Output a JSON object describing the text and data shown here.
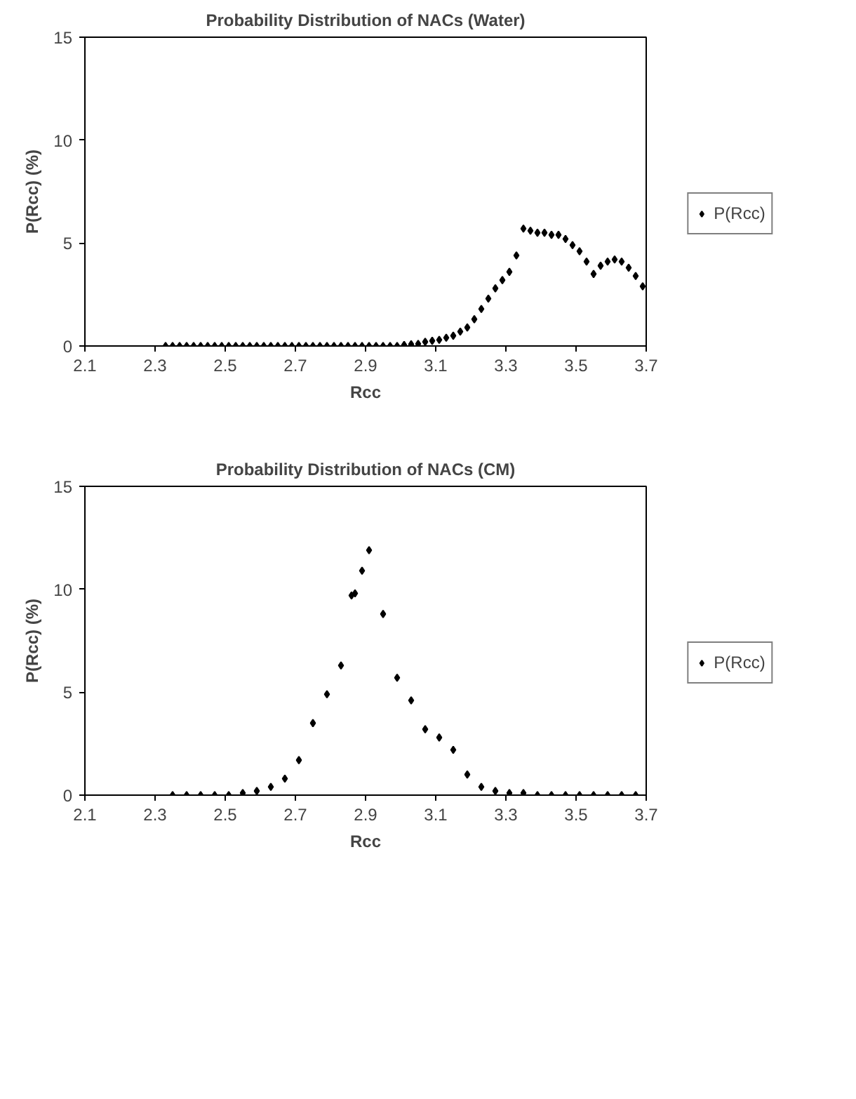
{
  "chart_data": [
    {
      "type": "scatter",
      "title": "Probability Distribution of NACs (Water)",
      "xlabel": "Rcc",
      "ylabel": "P(Rcc) (%)",
      "xlim": [
        2.1,
        3.7
      ],
      "xticks": [
        2.1,
        2.3,
        2.5,
        2.7,
        2.9,
        3.1,
        3.3,
        3.5,
        3.7
      ],
      "ylim": [
        0,
        15
      ],
      "yticks": [
        0,
        5,
        10,
        15
      ],
      "grid": false,
      "legend": "right",
      "marker": "diamond",
      "series": [
        {
          "name": "P(Rcc)",
          "color": "#000000",
          "x": [
            2.33,
            2.35,
            2.37,
            2.39,
            2.41,
            2.43,
            2.45,
            2.47,
            2.49,
            2.51,
            2.53,
            2.55,
            2.57,
            2.59,
            2.61,
            2.63,
            2.65,
            2.67,
            2.69,
            2.71,
            2.73,
            2.75,
            2.77,
            2.79,
            2.81,
            2.83,
            2.85,
            2.87,
            2.89,
            2.91,
            2.93,
            2.95,
            2.97,
            2.99,
            3.01,
            3.03,
            3.05,
            3.07,
            3.09,
            3.11,
            3.13,
            3.15,
            3.17,
            3.19,
            3.21,
            3.23,
            3.25,
            3.27,
            3.29,
            3.31,
            3.33,
            3.35,
            3.37,
            3.39,
            3.41,
            3.43,
            3.45,
            3.47,
            3.49,
            3.51,
            3.53,
            3.55,
            3.57,
            3.59,
            3.61,
            3.63,
            3.65,
            3.67,
            3.69
          ],
          "values": [
            0,
            0,
            0,
            0,
            0,
            0,
            0,
            0,
            0,
            0,
            0,
            0,
            0,
            0,
            0,
            0,
            0,
            0,
            0,
            0,
            0,
            0,
            0,
            0,
            0,
            0,
            0,
            0,
            0,
            0,
            0,
            0,
            0,
            0,
            0.05,
            0.08,
            0.1,
            0.2,
            0.25,
            0.3,
            0.4,
            0.5,
            0.7,
            0.9,
            1.3,
            1.8,
            2.3,
            2.8,
            3.2,
            3.6,
            4.4,
            5.7,
            5.6,
            5.5,
            5.5,
            5.4,
            5.4,
            5.2,
            4.9,
            4.6,
            4.1,
            3.5,
            3.9,
            4.1,
            4.2,
            4.1,
            3.8,
            3.4,
            2.9
          ]
        }
      ]
    },
    {
      "type": "scatter",
      "title": "Probability Distribution of NACs (CM)",
      "xlabel": "Rcc",
      "ylabel": "P(Rcc) (%)",
      "xlim": [
        2.1,
        3.7
      ],
      "xticks": [
        2.1,
        2.3,
        2.5,
        2.7,
        2.9,
        3.1,
        3.3,
        3.5,
        3.7
      ],
      "ylim": [
        0,
        15
      ],
      "yticks": [
        0,
        5,
        10,
        15
      ],
      "grid": false,
      "legend": "right",
      "marker": "diamond",
      "series": [
        {
          "name": "P(Rcc)",
          "color": "#000000",
          "x": [
            2.35,
            2.39,
            2.43,
            2.47,
            2.51,
            2.55,
            2.59,
            2.63,
            2.67,
            2.71,
            2.75,
            2.79,
            2.83,
            2.86,
            2.87,
            2.89,
            2.91,
            2.95,
            2.99,
            3.03,
            3.07,
            3.11,
            3.15,
            3.19,
            3.23,
            3.27,
            3.31,
            3.35,
            3.39,
            3.43,
            3.47,
            3.51,
            3.55,
            3.59,
            3.63,
            3.67
          ],
          "values": [
            0,
            0,
            0,
            0,
            0,
            0.1,
            0.2,
            0.4,
            0.8,
            1.7,
            3.5,
            4.9,
            6.3,
            9.7,
            9.8,
            10.9,
            11.9,
            8.8,
            5.7,
            4.6,
            3.2,
            2.8,
            2.2,
            1.0,
            0.4,
            0.2,
            0.1,
            0.1,
            0,
            0,
            0,
            0,
            0,
            0,
            0,
            0
          ]
        }
      ]
    }
  ]
}
